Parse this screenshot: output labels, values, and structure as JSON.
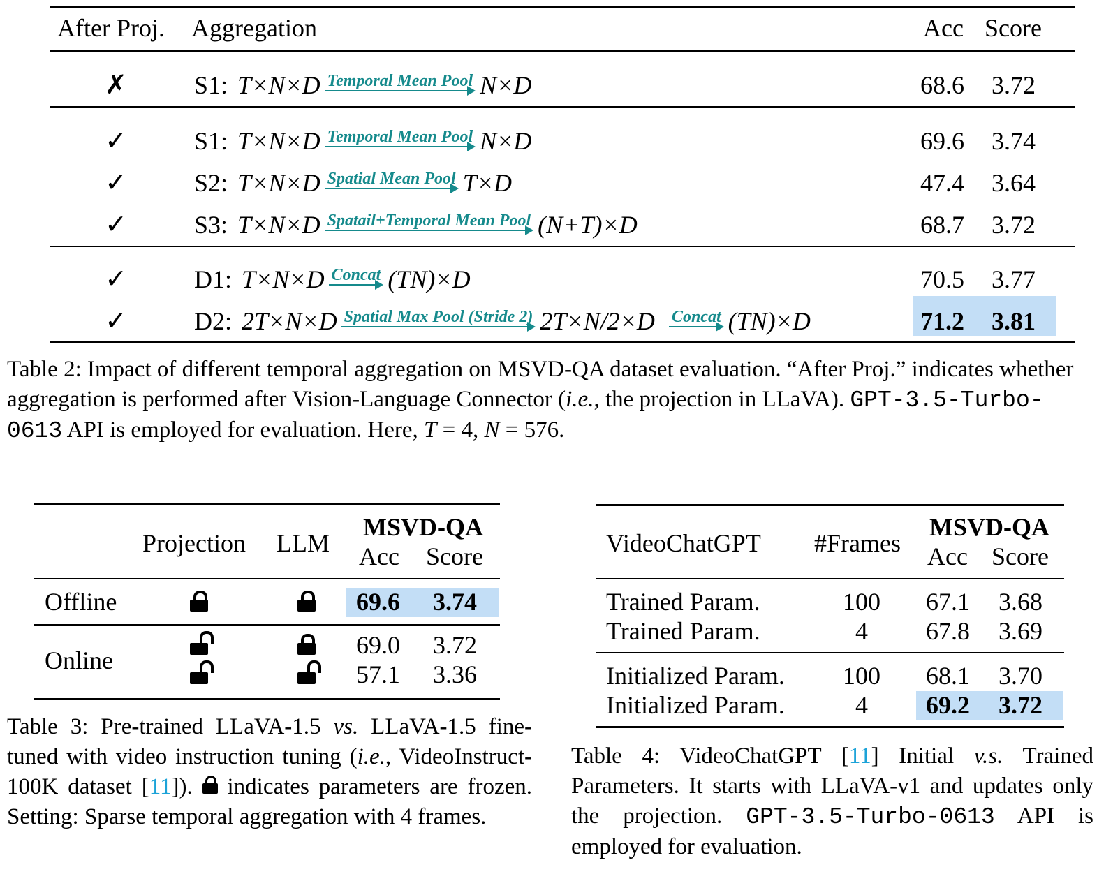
{
  "table2": {
    "headers": {
      "after_proj": "After Proj.",
      "aggregation": "Aggregation",
      "acc": "Acc",
      "score": "Score"
    },
    "rows": [
      {
        "mark": "✗",
        "label": "S1:",
        "input": "T×N×D",
        "ops": [
          {
            "op": "Temporal Mean Pool",
            "out": "N×D"
          }
        ],
        "acc": "68.6",
        "score": "3.72",
        "highlight": false
      },
      {
        "mark": "✓",
        "label": "S1:",
        "input": "T×N×D",
        "ops": [
          {
            "op": "Temporal Mean Pool",
            "out": "N×D"
          }
        ],
        "acc": "69.6",
        "score": "3.74",
        "highlight": false
      },
      {
        "mark": "✓",
        "label": "S2:",
        "input": "T×N×D",
        "ops": [
          {
            "op": "Spatial Mean Pool",
            "out": "T×D"
          }
        ],
        "acc": "47.4",
        "score": "3.64",
        "highlight": false
      },
      {
        "mark": "✓",
        "label": "S3:",
        "input": "T×N×D",
        "ops": [
          {
            "op": "Spatail+Temporal Mean Pool",
            "out": "(N+T)×D"
          }
        ],
        "acc": "68.7",
        "score": "3.72",
        "highlight": false
      },
      {
        "mark": "✓",
        "label": "D1:",
        "input": "T×N×D",
        "ops": [
          {
            "op": "Concat",
            "out": "(TN)×D"
          }
        ],
        "acc": "70.5",
        "score": "3.77",
        "highlight": false
      },
      {
        "mark": "✓",
        "label": "D2:",
        "input": "2T×N×D",
        "ops": [
          {
            "op": "Spatial Max Pool (Stride 2)",
            "out": "2T×N/2×D"
          },
          {
            "op": "Concat",
            "out": "(TN)×D"
          }
        ],
        "acc": "71.2",
        "score": "3.81",
        "highlight": true
      }
    ],
    "caption": {
      "prefix": "Table 2: Impact of different temporal aggregation on MSVD-QA dataset evaluation. “After Proj.” indicates whether aggregation is performed after Vision-Language Connector (",
      "ie": "i.e.",
      "mid": ", the projection in LLaVA). ",
      "code": "GPT-3.5-Turbo-0613",
      "suffix": " API is employed for evaluation. Here, ",
      "t_sym": "T",
      "t_val": " = 4, ",
      "n_sym": "N",
      "n_val": " = 576."
    }
  },
  "table3": {
    "headers": {
      "projection": "Projection",
      "llm": "LLM",
      "dataset": "MSVD-QA",
      "acc": "Acc",
      "score": "Score"
    },
    "groups": [
      {
        "name": "Offline",
        "rows": [
          {
            "projection": "locked",
            "llm": "locked",
            "acc": "69.6",
            "score": "3.74",
            "highlight": true
          }
        ]
      },
      {
        "name": "Online",
        "rows": [
          {
            "projection": "unlocked",
            "llm": "locked",
            "acc": "69.0",
            "score": "3.72",
            "highlight": false
          },
          {
            "projection": "unlocked",
            "llm": "unlocked",
            "acc": "57.1",
            "score": "3.36",
            "highlight": false
          }
        ]
      }
    ],
    "caption": {
      "p1": "Table 3: Pre-trained LLaVA-1.5 ",
      "vs": "vs.",
      "p2": " LLaVA-1.5 fine-tuned with video instruction tuning (",
      "ie": "i.e.",
      "p3": ", VideoInstruct-100K dataset [",
      "ref": "11",
      "p4": "]). ",
      "p5": " indicates parameters are frozen. Setting: Sparse temporal aggregation with 4 frames."
    }
  },
  "table4": {
    "headers": {
      "model": "VideoChatGPT",
      "frames": "#Frames",
      "dataset": "MSVD-QA",
      "acc": "Acc",
      "score": "Score"
    },
    "rows": [
      {
        "param": "Trained Param.",
        "frames": "100",
        "acc": "67.1",
        "score": "3.68",
        "highlight": false
      },
      {
        "param": "Trained Param.",
        "frames": "4",
        "acc": "67.8",
        "score": "3.69",
        "highlight": false
      },
      {
        "param": "Initialized Param.",
        "frames": "100",
        "acc": "68.1",
        "score": "3.70",
        "highlight": false
      },
      {
        "param": "Initialized Param.",
        "frames": "4",
        "acc": "69.2",
        "score": "3.72",
        "highlight": true
      }
    ],
    "caption": {
      "p1": "Table 4: VideoChatGPT [",
      "ref": "11",
      "p2": "] Initial ",
      "vs": "v.s.",
      "p3": " Trained Parameters. It starts with LLaVA-v1 and updates only the projection. ",
      "code": "GPT-3.5-Turbo-0613",
      "p4": " API is employed for evaluation."
    }
  }
}
